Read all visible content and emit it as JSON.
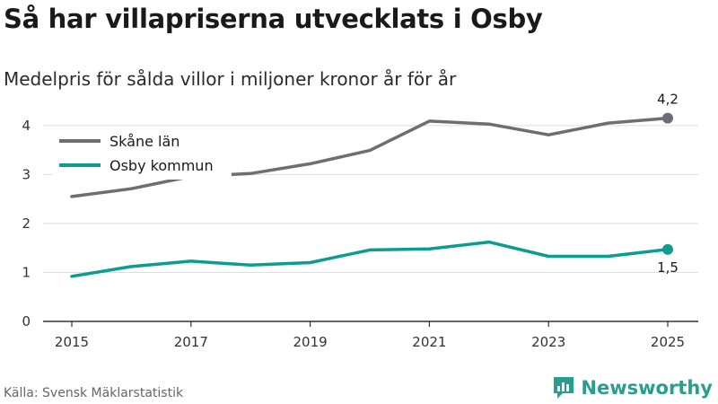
{
  "title": "Så har villapriserna utvecklats i Osby",
  "subtitle": "Medelpris för sålda villor i miljoner kronor år för år",
  "source": "Källa: Svensk Mäklarstatistik",
  "brand": "Newsworthy",
  "colors": {
    "skane": "#6d6d73",
    "osby": "#0d9d8f",
    "grid": "#dddddd",
    "brand": "#2a9d8f"
  },
  "chart_data": {
    "type": "line",
    "title": "Så har villapriserna utvecklats i Osby",
    "subtitle": "Medelpris för sålda villor i miljoner kronor år för år",
    "xlabel": "",
    "ylabel": "",
    "x": [
      2015,
      2016,
      2017,
      2018,
      2019,
      2020,
      2021,
      2022,
      2023,
      2024,
      2025
    ],
    "xticks": [
      "2015",
      "2017",
      "2019",
      "2021",
      "2023",
      "2025"
    ],
    "yticks": [
      "0",
      "1",
      "2",
      "3",
      "4"
    ],
    "ylim": [
      0,
      4.4
    ],
    "grid": true,
    "legend_position": "top-left",
    "series": [
      {
        "name": "Skåne län",
        "color": "#6d6d73",
        "values": [
          2.55,
          2.71,
          2.96,
          3.02,
          3.22,
          3.49,
          4.09,
          4.03,
          3.81,
          4.05,
          4.15
        ],
        "end_label": "4,2",
        "end_label_position": "above"
      },
      {
        "name": "Osby kommun",
        "color": "#0d9d8f",
        "values": [
          0.92,
          1.12,
          1.23,
          1.15,
          1.2,
          1.46,
          1.48,
          1.62,
          1.33,
          1.33,
          1.47
        ],
        "end_label": "1,5",
        "end_label_position": "below"
      }
    ]
  }
}
